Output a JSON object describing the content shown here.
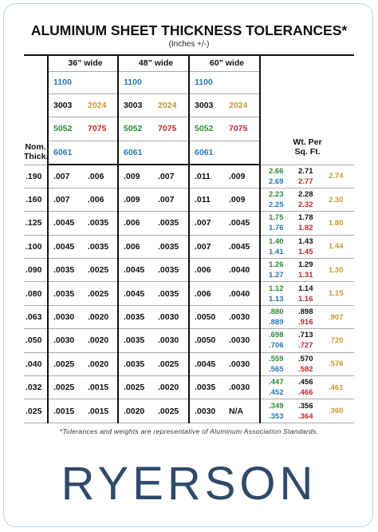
{
  "header": {
    "title": "ALUMINUM SHEET THICKNESS TOLERANCES*",
    "subtitle": "(Inches +/-)"
  },
  "table": {
    "widths": [
      "36” wide",
      "48” wide",
      "60” wide"
    ],
    "alloys": [
      [
        "1100"
      ],
      [
        "3003",
        "2024"
      ],
      [
        "5052",
        "7075"
      ],
      [
        "6061"
      ]
    ],
    "thickness_header": [
      "Nom.",
      "Thick."
    ],
    "weight_header": [
      "Wt. Per",
      "Sq. Ft."
    ],
    "rows": [
      [
        ".190",
        ".007",
        ".006",
        ".009",
        ".007",
        ".011",
        ".009",
        "2.66",
        "2.69",
        "2.71",
        "2.77",
        "2.74"
      ],
      [
        ".160",
        ".007",
        ".006",
        ".009",
        ".007",
        ".011",
        ".009",
        "2.23",
        "2.25",
        "2.28",
        "2.32",
        "2.30"
      ],
      [
        ".125",
        ".0045",
        ".0035",
        ".006",
        ".0035",
        ".007",
        ".0045",
        "1.75",
        "1.76",
        "1.78",
        "1.82",
        "1.80"
      ],
      [
        ".100",
        ".0045",
        ".0035",
        ".006",
        ".0035",
        ".007",
        ".0045",
        "1.40",
        "1.41",
        "1.43",
        "1.45",
        "1.44"
      ],
      [
        ".090",
        ".0035",
        ".0025",
        ".0045",
        ".0035",
        ".006",
        ".0040",
        "1.26",
        "1.27",
        "1.29",
        "1.31",
        "1.30"
      ],
      [
        ".080",
        ".0035",
        ".0025",
        ".0045",
        ".0035",
        ".006",
        ".0040",
        "1.12",
        "1.13",
        "1.14",
        "1.16",
        "1.15"
      ],
      [
        ".063",
        ".0030",
        ".0020",
        ".0035",
        ".0030",
        ".0050",
        ".0030",
        ".880",
        ".889",
        ".898",
        ".916",
        ".907"
      ],
      [
        ".050",
        ".0030",
        ".0020",
        ".0035",
        ".0030",
        ".0050",
        ".0030",
        ".698",
        ".706",
        ".713",
        ".727",
        ".720"
      ],
      [
        ".040",
        ".0025",
        ".0020",
        ".0035",
        ".0025",
        ".0045",
        ".0030",
        ".559",
        ".565",
        ".570",
        ".582",
        ".576"
      ],
      [
        ".032",
        ".0025",
        ".0015",
        ".0025",
        ".0020",
        ".0035",
        ".0030",
        ".447",
        ".452",
        ".456",
        ".466",
        ".461"
      ],
      [
        ".025",
        ".0015",
        ".0015",
        ".0020",
        ".0025",
        ".0030",
        "N/A",
        ".349",
        ".353",
        ".356",
        ".364",
        ".360"
      ]
    ]
  },
  "footnote": "*Tolerances and weights are representative of Aluminum Association Standards.",
  "brand": "RYERSON"
}
